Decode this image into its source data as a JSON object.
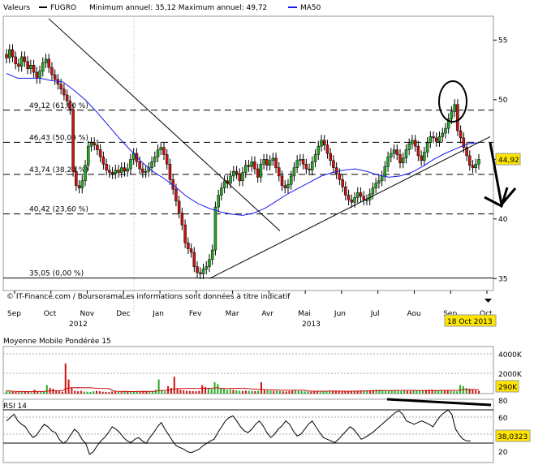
{
  "legend": {
    "valeurs_label": "Valeurs",
    "ticker": "FUGRO",
    "min_max": "Minimum annuel: 35,12 Maximum annuel: 49,72",
    "ma_label": "MA50"
  },
  "colors": {
    "candle_up": "#22aa22",
    "candle_down": "#cc1111",
    "ma50": "#1a1aee",
    "trend": "#000000",
    "badge_bg": "#ffe600",
    "volume_avg": "#cc1111"
  },
  "credit": "© IT-Finance.com / BoursoramaLes informations sont données à titre indicatif",
  "date_badge": "18 Oct 2013",
  "price_badge": "44,92",
  "volume": {
    "title": "Moyenne Mobile Pondérée 15",
    "badge": "290K",
    "ticks": [
      "4000K",
      "2000K"
    ]
  },
  "rsi": {
    "title": "RSI 14",
    "badge": "38,0323",
    "ticks": [
      "80",
      "60",
      "40",
      "20"
    ]
  },
  "chart_data": {
    "type": "candlestick",
    "title": "",
    "ylim": [
      34,
      57
    ],
    "y_ticks": [
      35,
      40,
      45,
      50,
      55
    ],
    "months": [
      "Sep",
      "Oct",
      "Nov",
      "Dec",
      "Jan",
      "Fev",
      "Mar",
      "Avr",
      "Mai",
      "Jun",
      "Jul",
      "Aou",
      "Sep",
      "Oct"
    ],
    "years": [
      "2012",
      "2013"
    ],
    "fib_levels": [
      {
        "label": "49,12 (61,80 %)",
        "value": 49.12
      },
      {
        "label": "46,43 (50,00 %)",
        "value": 46.43
      },
      {
        "label": "43,74 (38,20 %)",
        "value": 43.74
      },
      {
        "label": "40,42 (23,60 %)",
        "value": 40.42
      },
      {
        "label": "35,05 (0,00 %)",
        "value": 35.05
      }
    ],
    "close_series": [
      53.5,
      54.2,
      53.6,
      53.0,
      52.8,
      53.6,
      53.2,
      52.6,
      52.9,
      52.3,
      51.8,
      52.4,
      53.1,
      53.4,
      52.7,
      52.1,
      51.7,
      51.3,
      50.9,
      50.4,
      49.9,
      49.2,
      44.0,
      42.8,
      42.6,
      43.2,
      44.5,
      46.1,
      46.4,
      46.2,
      45.8,
      45.2,
      44.6,
      44.1,
      43.9,
      43.8,
      44.1,
      43.9,
      44.3,
      44.0,
      44.2,
      45.0,
      45.5,
      44.8,
      44.2,
      43.9,
      44.0,
      44.3,
      44.8,
      45.2,
      45.8,
      46.0,
      45.4,
      44.6,
      43.3,
      42.5,
      41.5,
      40.5,
      39.5,
      38.0,
      37.5,
      37.2,
      36.0,
      35.5,
      35.4,
      35.8,
      36.0,
      36.6,
      37.4,
      41.0,
      42.0,
      42.6,
      43.2,
      43.0,
      43.6,
      44.0,
      43.8,
      43.2,
      43.9,
      44.5,
      44.4,
      44.8,
      44.2,
      43.5,
      44.6,
      45.0,
      44.5,
      44.9,
      45.1,
      44.3,
      43.6,
      42.8,
      42.6,
      42.9,
      43.6,
      44.3,
      44.9,
      45.0,
      44.6,
      44.2,
      44.1,
      44.8,
      45.4,
      46.1,
      46.6,
      46.2,
      45.5,
      44.9,
      44.3,
      43.8,
      43.3,
      42.7,
      42.0,
      41.6,
      41.4,
      41.8,
      42.2,
      41.9,
      41.6,
      41.6,
      42.1,
      42.6,
      43.0,
      43.2,
      43.6,
      44.4,
      45.2,
      45.5,
      45.8,
      45.4,
      44.7,
      45.1,
      45.8,
      46.3,
      46.6,
      46.1,
      45.3,
      44.9,
      45.6,
      46.4,
      46.9,
      46.8,
      46.5,
      46.9,
      47.2,
      47.6,
      48.4,
      49.0,
      49.6,
      47.4,
      46.8,
      46.0,
      45.3,
      44.5,
      44.3,
      44.6,
      45.0
    ],
    "ma50_series": [
      52.2,
      51.8,
      51.8,
      51.8,
      51.6,
      51.5,
      50.8,
      50.0,
      49.0,
      47.9,
      46.8,
      45.8,
      44.8,
      44.0,
      43.4,
      42.7,
      41.9,
      41.3,
      40.9,
      40.6,
      40.4,
      40.3,
      40.5,
      40.9,
      41.5,
      42.1,
      42.6,
      43.1,
      43.6,
      43.9,
      44.1,
      44.2,
      44.0,
      43.7,
      43.5,
      43.6,
      43.9,
      44.4,
      45.0,
      45.5,
      45.9,
      46.3,
      46.4
    ],
    "volume_series": [
      300,
      250,
      200,
      180,
      150,
      260,
      220,
      180,
      150,
      400,
      200,
      160,
      180,
      900,
      600,
      500,
      300,
      250,
      200,
      3200,
      1500,
      600,
      300,
      250,
      280,
      220,
      200,
      180,
      250,
      300,
      260,
      200,
      180,
      160,
      220,
      250,
      180,
      160,
      300,
      250,
      200,
      180,
      220,
      260,
      300,
      280,
      250,
      220,
      400,
      1500,
      300,
      250,
      800,
      600,
      1800,
      500,
      400,
      350,
      300,
      280,
      260,
      250,
      300,
      900,
      700,
      600,
      500,
      1200,
      1000,
      600,
      500,
      400,
      450,
      400,
      350,
      300,
      280,
      320,
      300,
      280,
      260,
      300,
      1200,
      400,
      350,
      300,
      280,
      300,
      260,
      240,
      220,
      260,
      300,
      350,
      280,
      260,
      240,
      220,
      200,
      220,
      240,
      260,
      280,
      300,
      320,
      280,
      260,
      240,
      300,
      280,
      260,
      240,
      260,
      280,
      300,
      320,
      340,
      360,
      380,
      420,
      400,
      380,
      360,
      340,
      320,
      300,
      280,
      260,
      300,
      280,
      260,
      300,
      320,
      340,
      360,
      380,
      400,
      420,
      380,
      360,
      340,
      320,
      300,
      280,
      260,
      240,
      900,
      800,
      600,
      500,
      400,
      350,
      300
    ],
    "rsi_series": [
      62,
      66,
      70,
      62,
      58,
      55,
      48,
      42,
      45,
      52,
      58,
      55,
      50,
      48,
      40,
      35,
      38,
      45,
      52,
      48,
      40,
      35,
      22,
      25,
      32,
      38,
      42,
      48,
      55,
      52,
      48,
      42,
      38,
      36,
      40,
      42,
      38,
      35,
      42,
      48,
      55,
      60,
      52,
      45,
      38,
      32,
      30,
      28,
      25,
      24,
      26,
      28,
      32,
      35,
      38,
      40,
      48,
      55,
      62,
      66,
      68,
      62,
      55,
      50,
      48,
      52,
      58,
      62,
      56,
      48,
      42,
      46,
      52,
      56,
      62,
      58,
      50,
      44,
      46,
      52,
      58,
      62,
      55,
      48,
      42,
      40,
      38,
      36,
      40,
      45,
      50,
      55,
      52,
      46,
      40,
      42,
      45,
      48,
      52,
      56,
      60,
      64,
      68,
      72,
      74,
      70,
      62,
      60,
      58,
      60,
      62,
      60,
      58,
      55,
      62,
      68,
      72,
      75,
      70,
      52,
      45,
      40,
      38,
      38
    ],
    "resistance_line": {
      "from": [
        "Oct 2012",
        56.8
      ],
      "to": [
        "Avr 2013",
        39.0
      ]
    },
    "support_line": {
      "from": [
        "Fev 2013",
        35.0
      ],
      "to": [
        "Oct 2013",
        46.9
      ]
    }
  }
}
